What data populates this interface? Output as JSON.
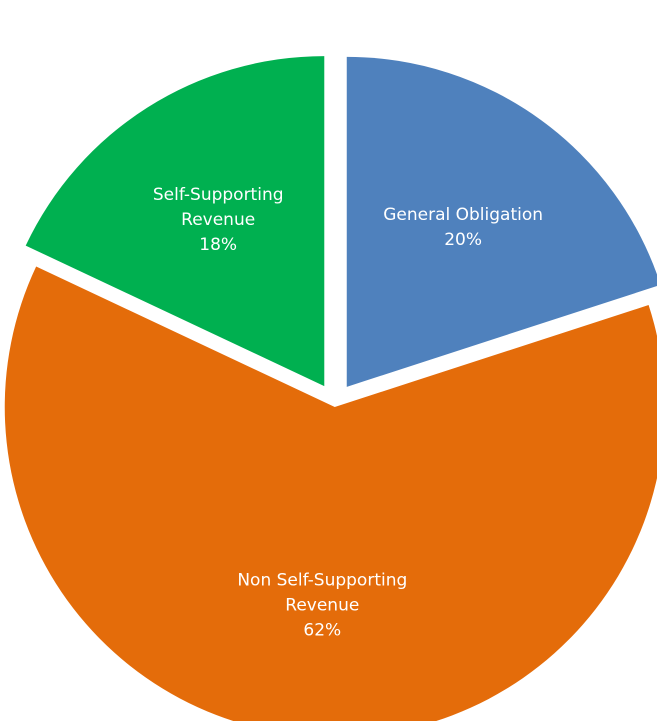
{
  "chart_data": {
    "type": "pie",
    "title": "",
    "legend": "none",
    "slices": [
      {
        "label_lines": [
          "General Obligation"
        ],
        "percent_label": "20%",
        "value": 20,
        "color": "#4f81bd"
      },
      {
        "label_lines": [
          "Non Self-Supporting",
          "Revenue"
        ],
        "percent_label": "62%",
        "value": 62,
        "color": "#e46c0a"
      },
      {
        "label_lines": [
          "Self-Supporting",
          "Revenue"
        ],
        "percent_label": "18%",
        "value": 18,
        "color": "#00b050"
      }
    ]
  }
}
